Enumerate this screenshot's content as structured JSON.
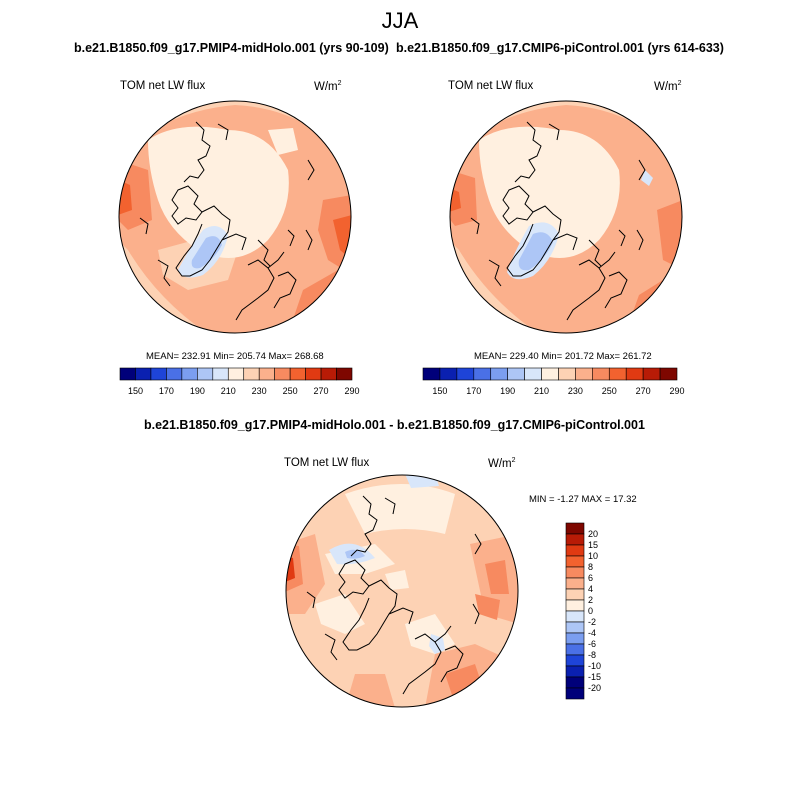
{
  "title": "JJA",
  "panels": [
    {
      "subtitle": "b.e21.B1850.f09_g17.PMIP4-midHolo.001 (yrs 90-109)",
      "left_label": "TOM net LW flux",
      "unit_base": "W/m",
      "unit_exp": "2",
      "stats": "MEAN= 232.91   Min= 205.74   Max= 268.68"
    },
    {
      "subtitle": "b.e21.B1850.f09_g17.CMIP6-piControl.001 (yrs 614-633)",
      "left_label": "TOM net LW flux",
      "unit_base": "W/m",
      "unit_exp": "2",
      "stats": "MEAN= 229.40   Min= 201.72   Max= 261.72"
    }
  ],
  "diff": {
    "subtitle": "b.e21.B1850.f09_g17.PMIP4-midHolo.001 - b.e21.B1850.f09_g17.CMIP6-piControl.001",
    "left_label": "TOM net LW flux",
    "unit_base": "W/m",
    "unit_exp": "2",
    "stats": "MIN =  -1.27 MAX =  17.32"
  },
  "colorbar_abs": {
    "colors": [
      "#00007a",
      "#0a20b0",
      "#1e44d8",
      "#4a70e6",
      "#7b9ef0",
      "#adc6f6",
      "#d8e6fa",
      "#fff0e0",
      "#fdd2b4",
      "#fbb08c",
      "#f78a60",
      "#f2622f",
      "#e03a12",
      "#b81b06",
      "#7e0700"
    ],
    "labels": [
      "150",
      "170",
      "190",
      "210",
      "230",
      "250",
      "270",
      "290"
    ]
  },
  "colorbar_diff": {
    "colors": [
      "#7e0700",
      "#b81b06",
      "#e03a12",
      "#f2622f",
      "#f78a60",
      "#fbb08c",
      "#fdd2b4",
      "#fff0e0",
      "#d8e6fa",
      "#adc6f6",
      "#7b9ef0",
      "#4a70e6",
      "#1e44d8",
      "#0a20b0",
      "#00007a"
    ],
    "labels": [
      "20",
      "15",
      "10",
      "8",
      "6",
      "4",
      "2",
      "0",
      "-2",
      "-4",
      "-6",
      "-8",
      "-10",
      "-15",
      "-20"
    ]
  }
}
